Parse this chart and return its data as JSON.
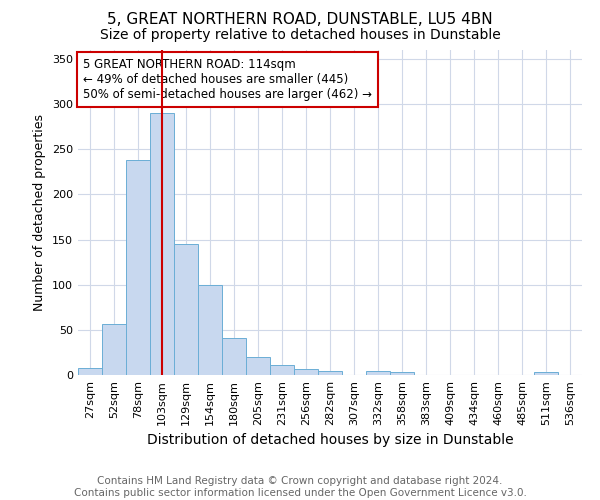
{
  "title": "5, GREAT NORTHERN ROAD, DUNSTABLE, LU5 4BN",
  "subtitle": "Size of property relative to detached houses in Dunstable",
  "xlabel": "Distribution of detached houses by size in Dunstable",
  "ylabel": "Number of detached properties",
  "footer_line1": "Contains HM Land Registry data © Crown copyright and database right 2024.",
  "footer_line2": "Contains public sector information licensed under the Open Government Licence v3.0.",
  "annotation_line1": "5 GREAT NORTHERN ROAD: 114sqm",
  "annotation_line2": "← 49% of detached houses are smaller (445)",
  "annotation_line3": "50% of semi-detached houses are larger (462) →",
  "bar_labels": [
    "27sqm",
    "52sqm",
    "78sqm",
    "103sqm",
    "129sqm",
    "154sqm",
    "180sqm",
    "205sqm",
    "231sqm",
    "256sqm",
    "282sqm",
    "307sqm",
    "332sqm",
    "358sqm",
    "383sqm",
    "409sqm",
    "434sqm",
    "460sqm",
    "485sqm",
    "511sqm",
    "536sqm"
  ],
  "bar_values": [
    8,
    57,
    238,
    290,
    145,
    100,
    41,
    20,
    11,
    7,
    4,
    0,
    4,
    3,
    0,
    0,
    0,
    0,
    0,
    3,
    0
  ],
  "bar_color": "#c8d8ef",
  "bar_edge_color": "#6baed6",
  "vline_x": 3.0,
  "vline_color": "#cc0000",
  "ylim": [
    0,
    360
  ],
  "yticks": [
    0,
    50,
    100,
    150,
    200,
    250,
    300,
    350
  ],
  "grid_color": "#d0d8e8",
  "background_color": "#ffffff",
  "annotation_box_color": "#ffffff",
  "annotation_box_edge": "#cc0000",
  "title_fontsize": 11,
  "subtitle_fontsize": 10,
  "xlabel_fontsize": 10,
  "ylabel_fontsize": 9,
  "tick_fontsize": 8,
  "footer_fontsize": 7.5,
  "ann_fontsize": 8.5
}
